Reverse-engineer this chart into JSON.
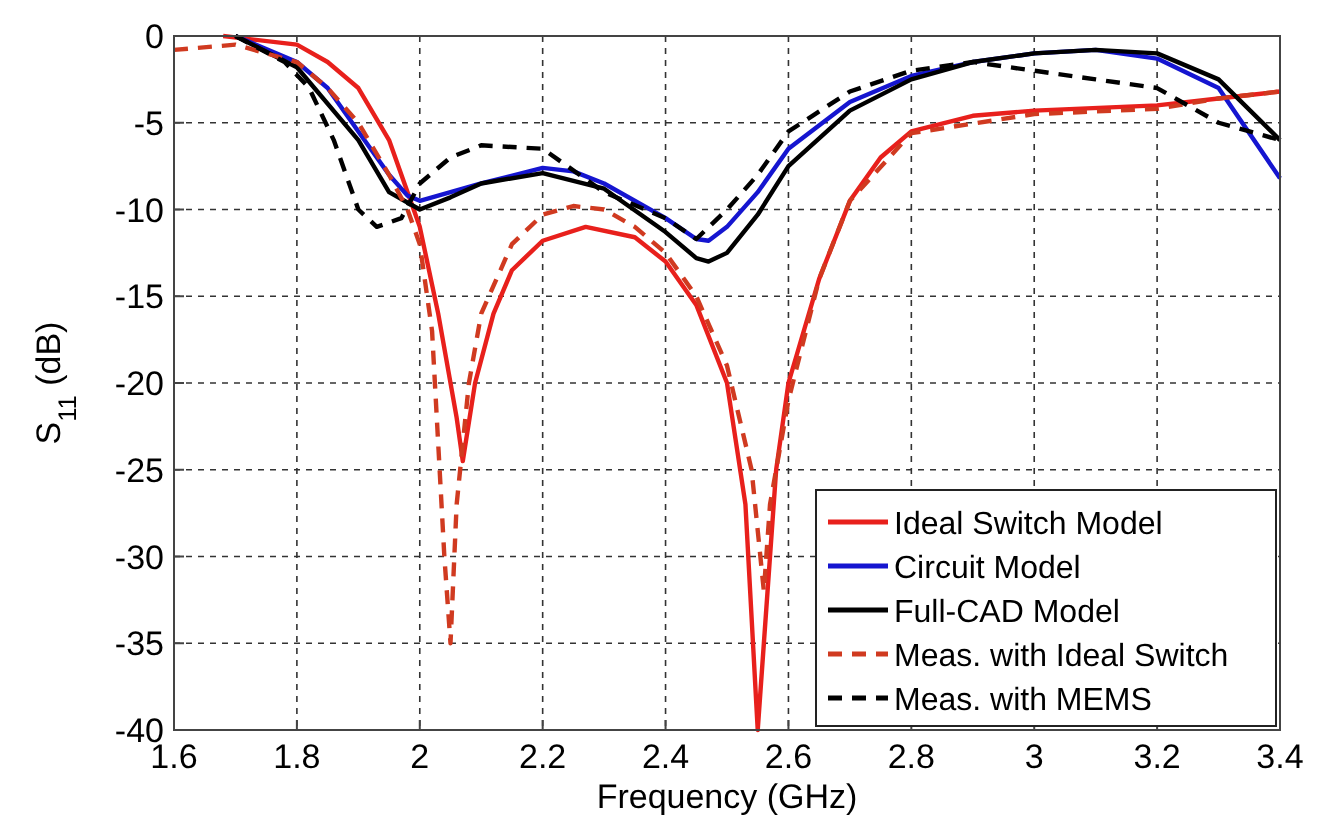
{
  "chart_data": {
    "type": "line",
    "xlabel": "Frequency (GHz)",
    "ylabel": "S$_{11}$ (dB)",
    "xlim": [
      1.6,
      3.4
    ],
    "ylim": [
      -40,
      0
    ],
    "xticks": [
      1.6,
      1.8,
      2,
      2.2,
      2.4,
      2.6,
      2.8,
      3,
      3.2,
      3.4
    ],
    "yticks": [
      -40,
      -35,
      -30,
      -25,
      -20,
      -15,
      -10,
      -5,
      0
    ],
    "grid": true,
    "legend": "bottom right",
    "marker": "none",
    "series": [
      {
        "name": "Ideal Switch Model",
        "color": "#e8201c",
        "line_style": "solid",
        "x": [
          1.68,
          1.8,
          1.85,
          1.9,
          1.95,
          2.0,
          2.03,
          2.06,
          2.07,
          2.09,
          2.12,
          2.15,
          2.2,
          2.27,
          2.35,
          2.4,
          2.45,
          2.5,
          2.53,
          2.55,
          2.56,
          2.58,
          2.6,
          2.65,
          2.7,
          2.75,
          2.8,
          2.9,
          3.0,
          3.2,
          3.3,
          3.4
        ],
        "values": [
          0,
          -0.5,
          -1.5,
          -3,
          -6,
          -11,
          -16,
          -22,
          -24.5,
          -20,
          -16,
          -13.5,
          -11.8,
          -11,
          -11.6,
          -13,
          -15.5,
          -20,
          -27,
          -40,
          -35,
          -25,
          -20,
          -14,
          -9.5,
          -7,
          -5.5,
          -4.6,
          -4.3,
          -4,
          -3.6,
          -3.2
        ]
      },
      {
        "name": "Circuit Model",
        "color": "#1515d0",
        "line_style": "solid",
        "x": [
          1.7,
          1.8,
          1.85,
          1.9,
          1.95,
          1.98,
          2.0,
          2.05,
          2.1,
          2.2,
          2.25,
          2.3,
          2.4,
          2.45,
          2.47,
          2.5,
          2.55,
          2.6,
          2.7,
          2.8,
          2.9,
          3.0,
          3.1,
          3.2,
          3.3,
          3.4
        ],
        "values": [
          0,
          -1.5,
          -3,
          -5.5,
          -8,
          -9.2,
          -9.5,
          -9,
          -8.5,
          -7.6,
          -7.8,
          -8.5,
          -10.5,
          -11.7,
          -11.8,
          -11,
          -9,
          -6.5,
          -3.8,
          -2.3,
          -1.5,
          -1,
          -0.8,
          -1.3,
          -3,
          -8.2
        ]
      },
      {
        "name": "Full-CAD Model",
        "color": "#000000",
        "line_style": "solid",
        "x": [
          1.7,
          1.8,
          1.9,
          1.95,
          2.0,
          2.05,
          2.1,
          2.2,
          2.3,
          2.4,
          2.45,
          2.47,
          2.5,
          2.55,
          2.6,
          2.7,
          2.8,
          2.9,
          3.0,
          3.1,
          3.2,
          3.3,
          3.4
        ],
        "values": [
          0,
          -1.8,
          -6,
          -9,
          -10,
          -9.3,
          -8.5,
          -7.9,
          -8.8,
          -11.3,
          -12.8,
          -13,
          -12.5,
          -10.3,
          -7.5,
          -4.3,
          -2.5,
          -1.5,
          -1,
          -0.8,
          -1,
          -2.5,
          -6
        ]
      },
      {
        "name": "Meas. with Ideal Switch",
        "color": "#d03a20",
        "line_style": "dashed",
        "x": [
          1.6,
          1.7,
          1.8,
          1.85,
          1.9,
          1.95,
          1.98,
          2.0,
          2.02,
          2.04,
          2.05,
          2.06,
          2.08,
          2.1,
          2.15,
          2.2,
          2.25,
          2.3,
          2.35,
          2.4,
          2.45,
          2.5,
          2.54,
          2.56,
          2.57,
          2.6,
          2.65,
          2.7,
          2.8,
          3.0,
          3.2,
          3.3,
          3.4
        ],
        "values": [
          -0.8,
          -0.5,
          -1.5,
          -3,
          -5,
          -8,
          -10,
          -12,
          -17,
          -30,
          -35,
          -27,
          -20,
          -16,
          -12,
          -10.3,
          -9.8,
          -10,
          -11,
          -12.5,
          -15,
          -19,
          -25,
          -32,
          -27,
          -21,
          -14,
          -9.5,
          -5.6,
          -4.5,
          -4.2,
          -3.6,
          -3.2
        ]
      },
      {
        "name": "Meas. with MEMS",
        "color": "#000000",
        "line_style": "dashed",
        "x": [
          1.7,
          1.78,
          1.82,
          1.86,
          1.9,
          1.93,
          1.97,
          2.0,
          2.05,
          2.1,
          2.2,
          2.3,
          2.4,
          2.45,
          2.5,
          2.55,
          2.6,
          2.7,
          2.8,
          2.9,
          3.0,
          3.1,
          3.2,
          3.3,
          3.4
        ],
        "values": [
          0,
          -1.5,
          -3,
          -6,
          -10,
          -11,
          -10.5,
          -8.5,
          -7,
          -6.3,
          -6.5,
          -9,
          -10.5,
          -11.7,
          -10,
          -8,
          -5.5,
          -3.2,
          -2,
          -1.5,
          -2,
          -2.5,
          -3,
          -5,
          -6
        ]
      }
    ]
  }
}
